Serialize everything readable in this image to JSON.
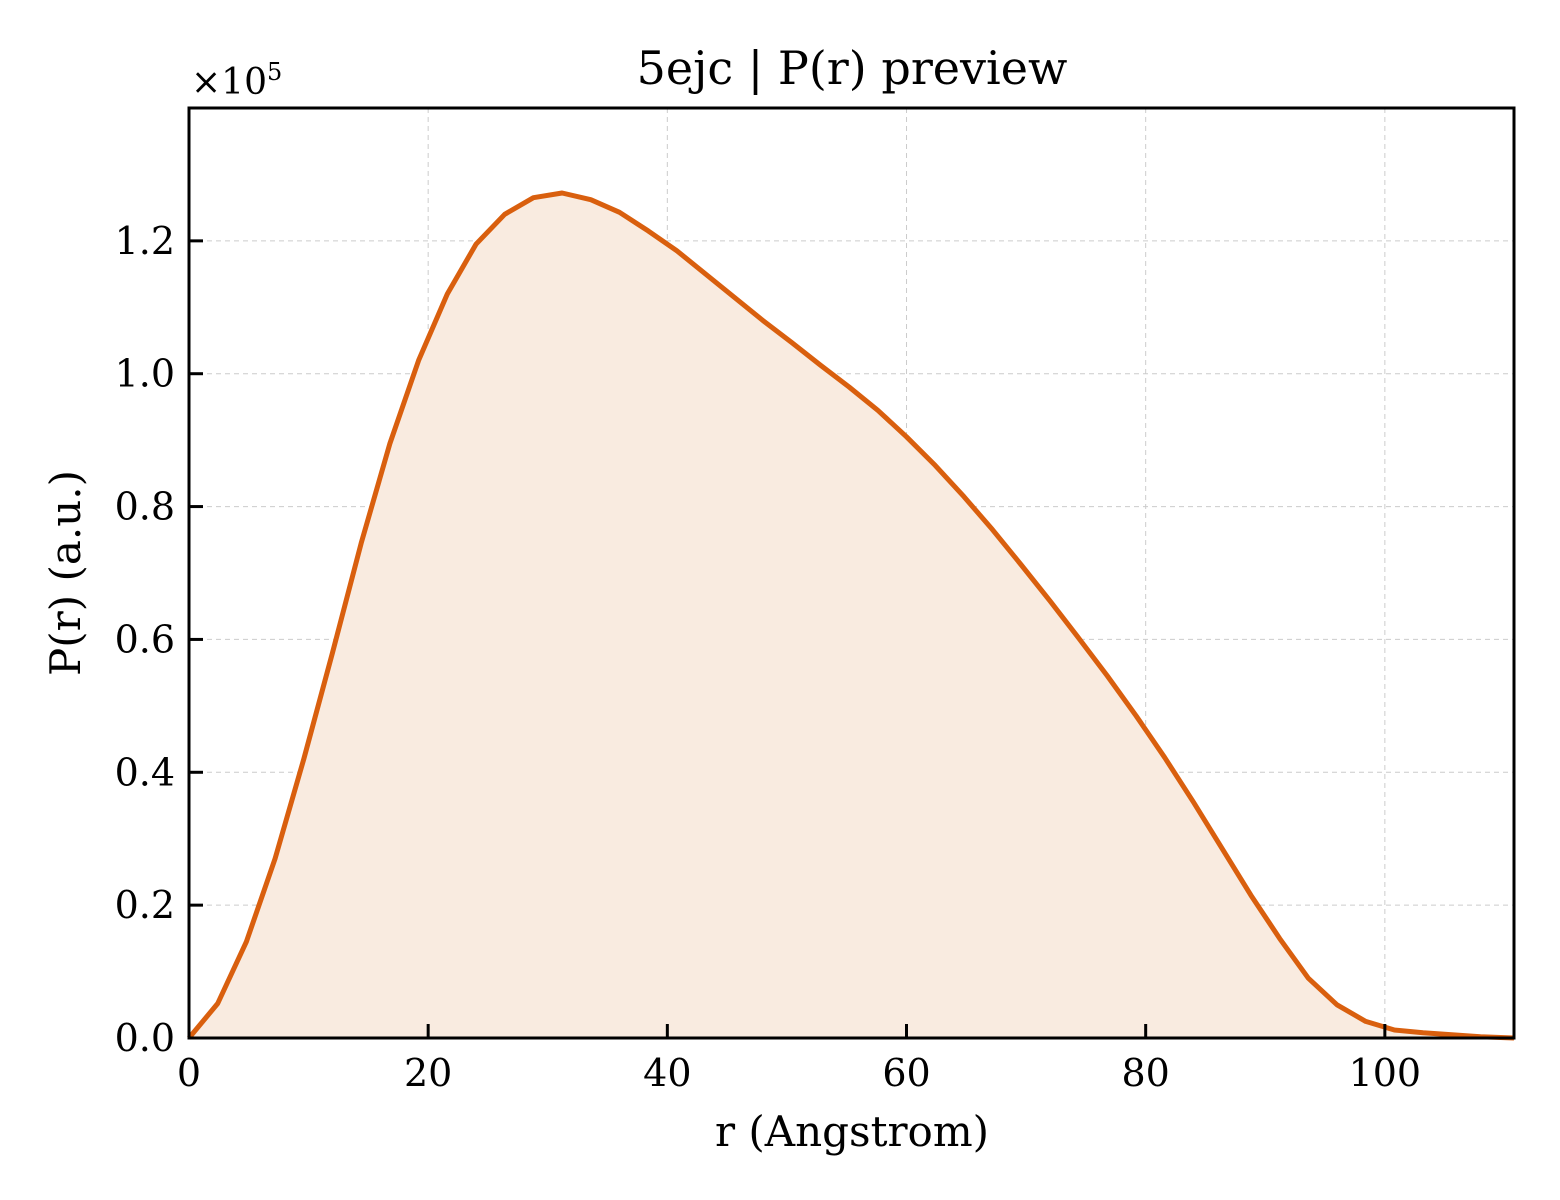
{
  "chart_data": {
    "type": "area",
    "title": "5ejc | P(r) preview",
    "xlabel": "r (Angstrom)",
    "ylabel": "P(r) (a.u.)",
    "y_multiplier_label": "×10",
    "y_multiplier_exponent": "5",
    "xlim": [
      0,
      110.8
    ],
    "ylim": [
      0,
      1.4
    ],
    "xticks": [
      0,
      20,
      40,
      60,
      80,
      100
    ],
    "xtick_labels": [
      "0",
      "20",
      "40",
      "60",
      "80",
      "100"
    ],
    "yticks": [
      0,
      0.2,
      0.4,
      0.6,
      0.8,
      1.0,
      1.2
    ],
    "ytick_labels": [
      "0.0",
      "0.2",
      "0.4",
      "0.6",
      "0.8",
      "1.0",
      "1.2"
    ],
    "grid": true,
    "line_color": "#d95f0e",
    "fill_color": "#f9ebe0",
    "series": [
      {
        "x": [
          0,
          2.4,
          4.8,
          7.2,
          9.6,
          12.0,
          14.4,
          16.8,
          19.2,
          21.6,
          24.0,
          26.4,
          28.8,
          31.2,
          33.6,
          36.0,
          38.4,
          40.8,
          43.2,
          45.6,
          48.0,
          50.4,
          52.8,
          55.2,
          57.6,
          60.0,
          62.4,
          64.8,
          67.2,
          69.6,
          72.0,
          74.4,
          76.8,
          79.2,
          81.6,
          84.0,
          86.4,
          88.8,
          91.2,
          93.6,
          96.0,
          98.4,
          100.8,
          103.2,
          105.6,
          108.0,
          110.8
        ],
        "values": [
          0.0,
          0.052,
          0.145,
          0.27,
          0.42,
          0.58,
          0.745,
          0.895,
          1.02,
          1.12,
          1.195,
          1.24,
          1.265,
          1.272,
          1.262,
          1.243,
          1.215,
          1.185,
          1.15,
          1.115,
          1.08,
          1.047,
          1.013,
          0.98,
          0.945,
          0.905,
          0.862,
          0.815,
          0.765,
          0.712,
          0.658,
          0.602,
          0.545,
          0.485,
          0.422,
          0.355,
          0.285,
          0.215,
          0.15,
          0.09,
          0.05,
          0.025,
          0.012,
          0.008,
          0.005,
          0.002,
          0.0
        ]
      }
    ]
  }
}
